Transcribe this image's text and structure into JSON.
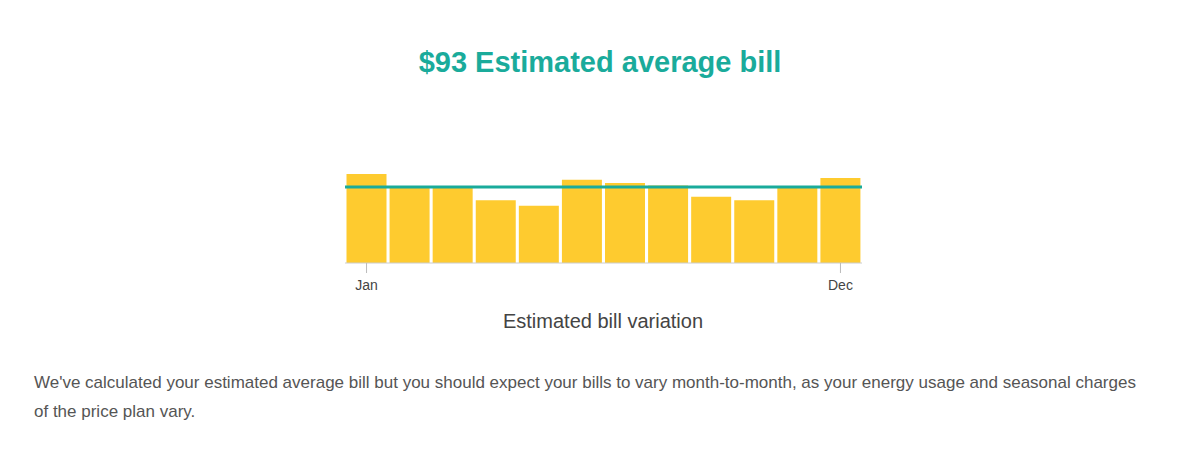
{
  "chart_data": {
    "type": "bar",
    "title": "$93 Estimated average bill",
    "xlabel": "Estimated bill variation",
    "categories": [
      "Jan",
      null,
      null,
      null,
      null,
      null,
      null,
      null,
      null,
      null,
      null,
      "Dec"
    ],
    "values": [
      109,
      93,
      93,
      77,
      70,
      102,
      98,
      95,
      81,
      77,
      93,
      104
    ],
    "average": 93,
    "color": "#fecb2f",
    "tick_labels": "x",
    "grid": false,
    "caption": "We've calculated your estimated average bill but you should expect your bills to vary month-to-month, as your energy usage and seasonal charges of the price plan vary."
  }
}
